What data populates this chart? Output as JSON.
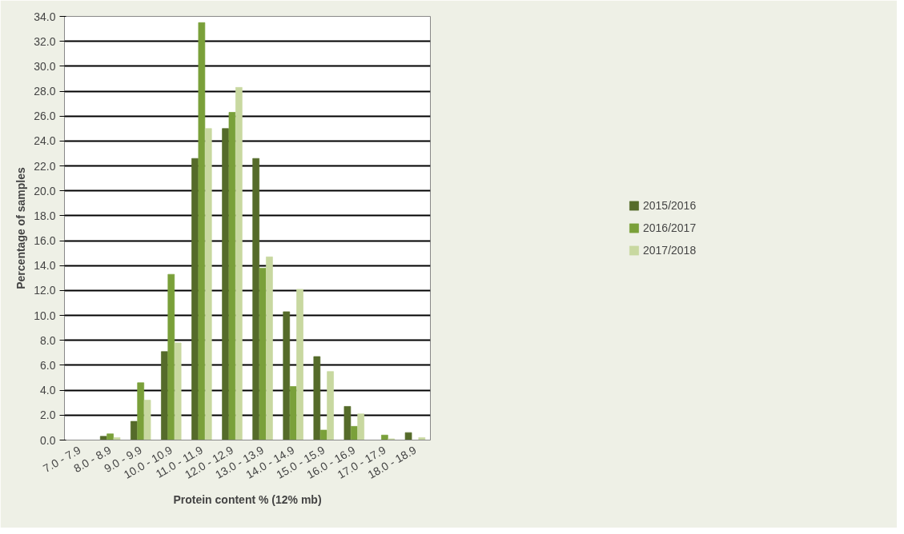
{
  "chart_data": {
    "type": "bar",
    "xlabel": "Protein content % (12% mb)",
    "ylabel": "Percentage of samples",
    "categories": [
      "7.0 - 7.9",
      "8.0 - 8.9",
      "9.0 - 9.9",
      "10.0 - 10.9",
      "11.0 - 11.9",
      "12.0 - 12.9",
      "13.0 - 13.9",
      "14.0 - 14.9",
      "15.0 - 15.9",
      "16.0 - 16.9",
      "17.0 - 17.9",
      "18.0 - 18.9"
    ],
    "series": [
      {
        "name": "2015/2016",
        "color": "#556b2a",
        "values": [
          0,
          0.3,
          1.5,
          7.1,
          22.6,
          25.0,
          22.6,
          10.3,
          6.7,
          2.7,
          0,
          0.6
        ]
      },
      {
        "name": "2016/2017",
        "color": "#7aa03a",
        "values": [
          0,
          0.5,
          4.6,
          13.3,
          33.5,
          26.3,
          13.8,
          4.3,
          0.8,
          1.1,
          0.4,
          0
        ]
      },
      {
        "name": "2017/2018",
        "color": "#c8d8a0",
        "values": [
          0,
          0.2,
          3.2,
          7.8,
          25.0,
          28.3,
          14.7,
          12.1,
          5.5,
          2.1,
          0.1,
          0.2
        ]
      }
    ],
    "ylim": [
      0,
      34
    ],
    "yticks": [
      {
        "value": 0,
        "label": "0.0"
      },
      {
        "value": 2,
        "label": "2.0"
      },
      {
        "value": 4,
        "label": "4.0"
      },
      {
        "value": 6,
        "label": "6.0"
      },
      {
        "value": 8,
        "label": "8.0"
      },
      {
        "value": 10,
        "label": "10.0"
      },
      {
        "value": 12,
        "label": "12.0"
      },
      {
        "value": 14,
        "label": "14.0"
      },
      {
        "value": 16,
        "label": "16.0"
      },
      {
        "value": 18,
        "label": "18.0"
      },
      {
        "value": 20,
        "label": "20.0"
      },
      {
        "value": 22,
        "label": "22.0"
      },
      {
        "value": 24,
        "label": "24.0"
      },
      {
        "value": 26,
        "label": "26.0"
      },
      {
        "value": 28,
        "label": "28.0"
      },
      {
        "value": 30,
        "label": "30.0"
      },
      {
        "value": 32,
        "label": "32.0"
      },
      {
        "value": 34,
        "label": "34.0"
      }
    ],
    "grid": "y",
    "legend": "right"
  }
}
